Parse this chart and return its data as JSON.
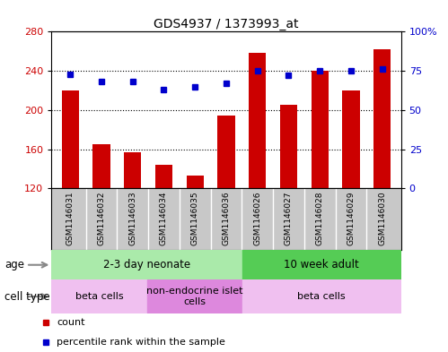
{
  "title": "GDS4937 / 1373993_at",
  "samples": [
    "GSM1146031",
    "GSM1146032",
    "GSM1146033",
    "GSM1146034",
    "GSM1146035",
    "GSM1146036",
    "GSM1146026",
    "GSM1146027",
    "GSM1146028",
    "GSM1146029",
    "GSM1146030"
  ],
  "counts": [
    220,
    165,
    157,
    144,
    133,
    194,
    258,
    205,
    240,
    220,
    262
  ],
  "percentile_ranks": [
    73,
    68,
    68,
    63,
    65,
    67,
    75,
    72,
    75,
    75,
    76
  ],
  "ylim_left": [
    120,
    280
  ],
  "ylim_right": [
    0,
    100
  ],
  "yticks_left": [
    120,
    160,
    200,
    240,
    280
  ],
  "yticks_right": [
    0,
    25,
    50,
    75,
    100
  ],
  "ytick_labels_right": [
    "0",
    "25",
    "50",
    "75",
    "100%"
  ],
  "bar_color": "#cc0000",
  "dot_color": "#0000cc",
  "bg_color": "#ffffff",
  "age_groups": [
    {
      "label": "2-3 day neonate",
      "start": 0,
      "end": 6,
      "color": "#aaeaaa"
    },
    {
      "label": "10 week adult",
      "start": 6,
      "end": 11,
      "color": "#55cc55"
    }
  ],
  "cell_type_groups": [
    {
      "label": "beta cells",
      "start": 0,
      "end": 3,
      "color": "#f0c0f0"
    },
    {
      "label": "non-endocrine islet\ncells",
      "start": 3,
      "end": 6,
      "color": "#dd88dd"
    },
    {
      "label": "beta cells",
      "start": 6,
      "end": 11,
      "color": "#f0c0f0"
    }
  ],
  "sample_bg": "#c8c8c8"
}
